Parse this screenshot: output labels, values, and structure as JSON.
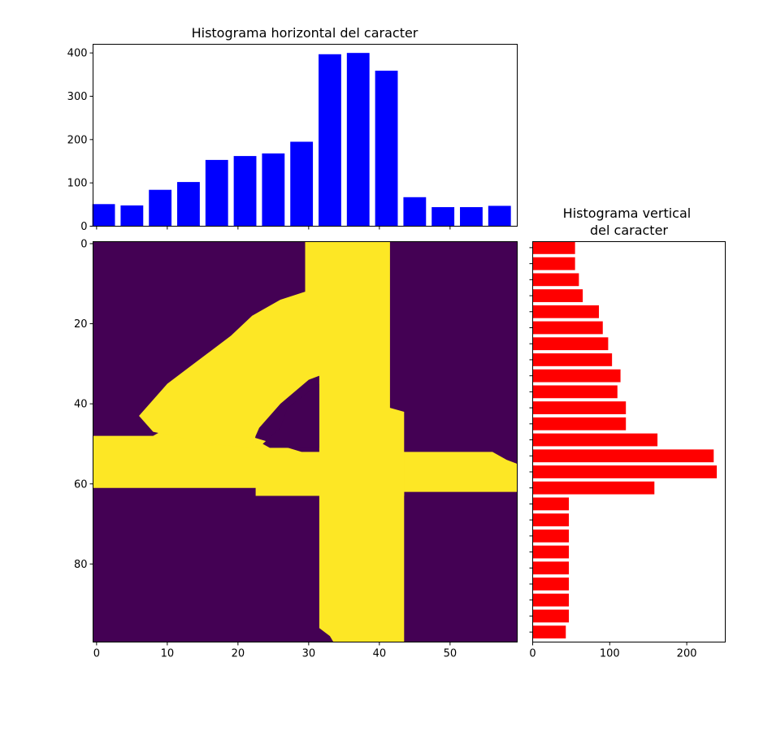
{
  "chart_data": [
    {
      "type": "bar",
      "title": "Histograma horizontal del caracter",
      "color": "#0000ff",
      "xlim": [
        -0.5,
        59.5
      ],
      "ylim": [
        0,
        420
      ],
      "ytick_labels": [
        "0",
        "100",
        "200",
        "300",
        "400"
      ],
      "bars": [
        {
          "x": 1,
          "value": 51
        },
        {
          "x": 5,
          "value": 48
        },
        {
          "x": 9,
          "value": 84
        },
        {
          "x": 13,
          "value": 102
        },
        {
          "x": 17,
          "value": 153
        },
        {
          "x": 21,
          "value": 162
        },
        {
          "x": 25,
          "value": 168
        },
        {
          "x": 29,
          "value": 195
        },
        {
          "x": 33,
          "value": 397
        },
        {
          "x": 37,
          "value": 400
        },
        {
          "x": 41,
          "value": 359
        },
        {
          "x": 45,
          "value": 67
        },
        {
          "x": 49,
          "value": 44
        },
        {
          "x": 53,
          "value": 44
        },
        {
          "x": 57,
          "value": 47
        }
      ]
    },
    {
      "type": "heatmap",
      "colors": {
        "background": "#440154",
        "foreground": "#fde725"
      },
      "xlim": [
        -0.5,
        59.5
      ],
      "ylim": [
        99.5,
        -0.5
      ],
      "xtick_labels": [
        "0",
        "10",
        "20",
        "30",
        "40",
        "50"
      ],
      "ytick_labels": [
        "0",
        "20",
        "40",
        "60",
        "80"
      ],
      "shape": "character 4"
    },
    {
      "type": "bar",
      "orientation": "horizontal",
      "title": "Histograma vertical\ndel caracter",
      "color": "#ff0000",
      "xlim": [
        0,
        250
      ],
      "ylim": [
        99.5,
        -0.5
      ],
      "xtick_labels": [
        "0",
        "100",
        "200"
      ],
      "bars": [
        {
          "y": 1,
          "value": 55
        },
        {
          "y": 5,
          "value": 55
        },
        {
          "y": 9,
          "value": 60
        },
        {
          "y": 13,
          "value": 65
        },
        {
          "y": 17,
          "value": 86
        },
        {
          "y": 21,
          "value": 91
        },
        {
          "y": 25,
          "value": 98
        },
        {
          "y": 29,
          "value": 103
        },
        {
          "y": 33,
          "value": 114
        },
        {
          "y": 37,
          "value": 110
        },
        {
          "y": 41,
          "value": 121
        },
        {
          "y": 45,
          "value": 121
        },
        {
          "y": 49,
          "value": 162
        },
        {
          "y": 53,
          "value": 235
        },
        {
          "y": 57,
          "value": 239
        },
        {
          "y": 61,
          "value": 158
        },
        {
          "y": 65,
          "value": 47
        },
        {
          "y": 69,
          "value": 47
        },
        {
          "y": 73,
          "value": 47
        },
        {
          "y": 77,
          "value": 47
        },
        {
          "y": 81,
          "value": 47
        },
        {
          "y": 85,
          "value": 47
        },
        {
          "y": 89,
          "value": 47
        },
        {
          "y": 93,
          "value": 47
        },
        {
          "y": 97,
          "value": 43
        }
      ]
    }
  ]
}
